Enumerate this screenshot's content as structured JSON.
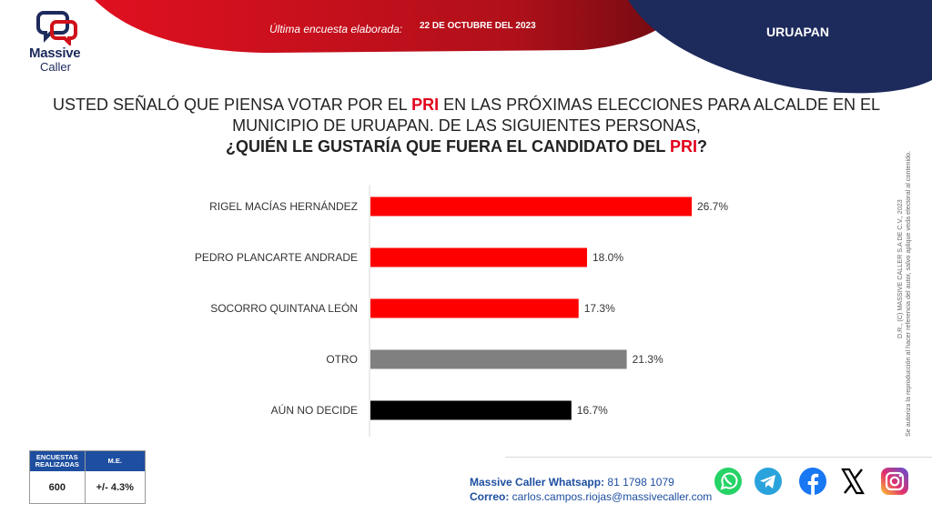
{
  "header": {
    "survey_label": "Última encuesta elaborada:",
    "survey_date": "22 DE OCTUBRE DEL 2023",
    "city": "URUAPAN",
    "colors": {
      "red": "#c8101e",
      "navy": "#1d2a5c"
    }
  },
  "logo": {
    "line1": "Massive",
    "line2": "Caller",
    "icon": "speech-bubbles-logo"
  },
  "question": {
    "line1_a": "USTED SEÑALÓ QUE PIENSA VOTAR POR EL ",
    "line1_red": "PRI",
    "line1_b": " EN LAS PRÓXIMAS ELECCIONES PARA ALCALDE EN EL",
    "line2": "MUNICIPIO DE URUAPAN.  DE LAS SIGUIENTES PERSONAS,",
    "line3_a": "¿QUIÉN LE GUSTARÍA QUE FUERA EL CANDIDATO DEL ",
    "line3_red": "PRI",
    "line3_b": "?"
  },
  "side_note": {
    "line1": "D.R., (C) MASSIVE CALLER S.A DE C.V., 2023",
    "line2": "Se autoriza la reproducción al hacer referencia del autor, salvo aplique veda electoral al contenido."
  },
  "chart_data": {
    "type": "bar",
    "orientation": "horizontal",
    "categories": [
      "RIGEL MACÍAS HERNÁNDEZ",
      "PEDRO PLANCARTE ANDRADE",
      "SOCORRO QUINTANA LEÓN",
      "OTRO",
      "AÚN NO DECIDE"
    ],
    "values": [
      26.7,
      18.0,
      17.3,
      21.3,
      16.7
    ],
    "value_labels": [
      "26.7%",
      "18.0%",
      "17.3%",
      "21.3%",
      "16.7%"
    ],
    "colors": [
      "#ff0000",
      "#ff0000",
      "#ff0000",
      "#808080",
      "#000000"
    ],
    "xlim": [
      0,
      30
    ],
    "grid": false,
    "title": "",
    "xlabel": "",
    "ylabel": ""
  },
  "stats": {
    "col1_header": "ENCUESTAS REALIZADAS",
    "col2_header": "M.E.",
    "col1_value": "600",
    "col2_value": "+/- 4.3%"
  },
  "contact": {
    "whatsapp_label": "Massive Caller Whatsapp:",
    "whatsapp_value": " 81 1798 1079",
    "email_label": "Correo:",
    "email_value": " carlos.campos.riojas@massivecaller.com"
  },
  "social": [
    "whatsapp-icon",
    "telegram-icon",
    "facebook-icon",
    "x-icon",
    "instagram-icon"
  ]
}
